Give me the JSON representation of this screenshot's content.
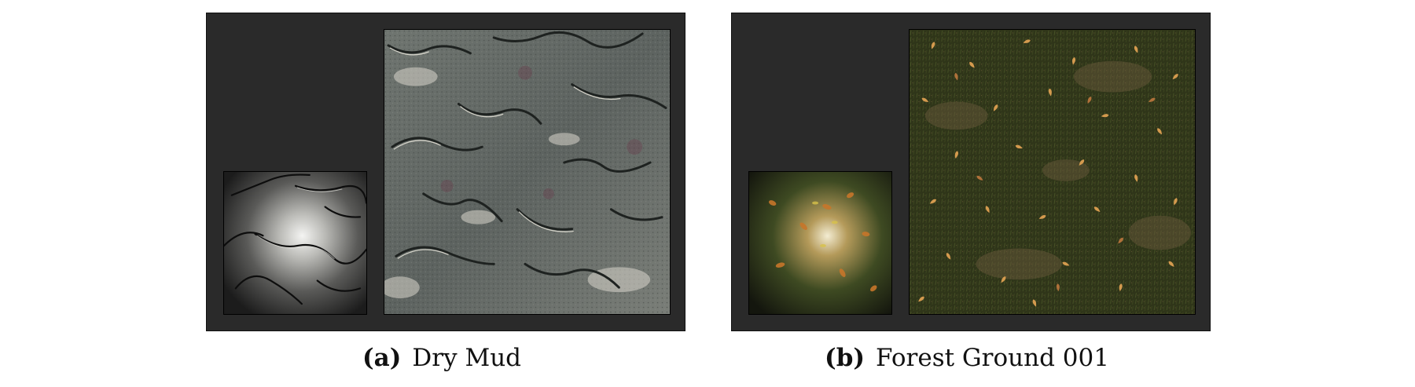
{
  "figures": [
    {
      "id": "a",
      "tag": "(a)",
      "title": "Dry Mud",
      "texture": "dry-mud"
    },
    {
      "id": "b",
      "tag": "(b)",
      "title": "Forest Ground 001",
      "texture": "forest-ground"
    }
  ]
}
